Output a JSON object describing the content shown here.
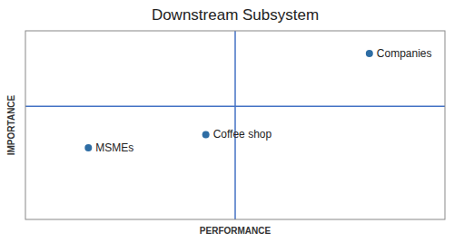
{
  "chart_data": {
    "type": "scatter",
    "title": "Downstream Subsystem",
    "x_label": "PERFORMANCE",
    "y_label": "IMPORTANCE",
    "x": [
      8.2,
      4.3,
      1.5
    ],
    "values": [
      8.8,
      4.5,
      3.8
    ],
    "point_labels": [
      "Companies",
      "Coffee shop",
      "MSMEs"
    ],
    "color": "#2e6da4",
    "xlim": [
      0,
      10
    ],
    "ylim": [
      0,
      10
    ],
    "reference_lines": [
      {
        "x": 5.0,
        "color": "#4472c4"
      },
      {
        "y": 6.0,
        "color": "#4472c4"
      }
    ],
    "tick_labels": false,
    "grid": false
  }
}
